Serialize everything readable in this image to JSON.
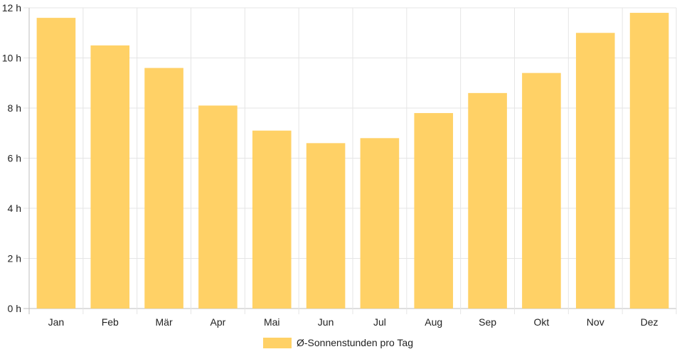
{
  "chart_data": {
    "type": "bar",
    "categories": [
      "Jan",
      "Feb",
      "Mär",
      "Apr",
      "Mai",
      "Jun",
      "Jul",
      "Aug",
      "Sep",
      "Okt",
      "Nov",
      "Dez"
    ],
    "series": [
      {
        "name": "Ø-Sonnenstunden pro Tag",
        "color": "#ffd166",
        "values": [
          11.6,
          10.5,
          9.6,
          8.1,
          7.1,
          6.6,
          6.8,
          7.8,
          8.6,
          9.4,
          11.0,
          11.8
        ]
      }
    ],
    "y_ticks": [
      "0 h",
      "2 h",
      "4 h",
      "6 h",
      "8 h",
      "10 h",
      "12 h"
    ],
    "ylim": [
      0,
      12
    ],
    "grid": true,
    "legend_position": "bottom"
  }
}
